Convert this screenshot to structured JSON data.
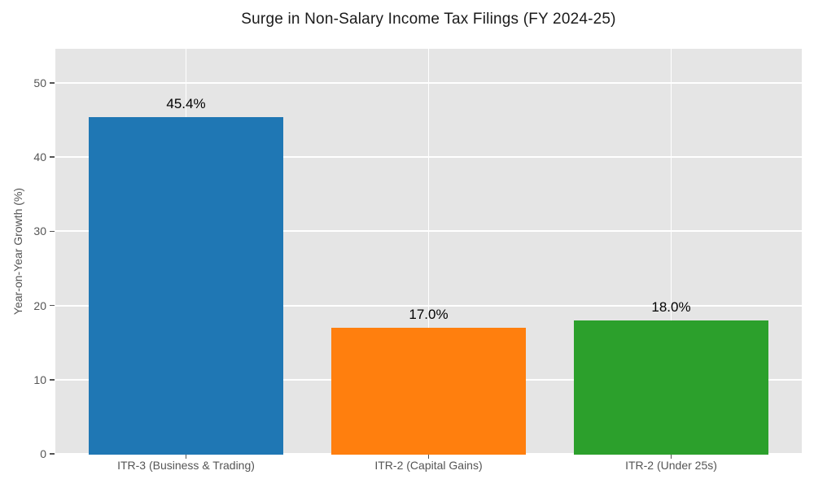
{
  "chart_data": {
    "type": "bar",
    "title": "Surge in Non-Salary Income Tax Filings (FY 2024-25)",
    "ylabel": "Year-on-Year Growth (%)",
    "xlabel": "",
    "categories": [
      "ITR-3 (Business & Trading)",
      "ITR-2 (Capital Gains)",
      "ITR-2 (Under 25s)"
    ],
    "values": [
      45.4,
      17.0,
      18.0
    ],
    "value_labels": [
      "45.4%",
      "17.0%",
      "18.0%"
    ],
    "bar_colors": [
      "#1f77b4",
      "#ff7f0e",
      "#2ca02c"
    ],
    "yticks": [
      0,
      10,
      20,
      30,
      40,
      50
    ],
    "ylim": [
      0,
      54.6
    ],
    "grid": true,
    "legend": false,
    "bar_width_frac": 0.8,
    "style": {
      "plot_background": "#e5e5e5",
      "grid_color": "#ffffff",
      "tick_label_color": "#555555",
      "tick_mark_color": "#555555",
      "title_color": "#1a1a1a",
      "value_label_color": "#000000"
    }
  }
}
